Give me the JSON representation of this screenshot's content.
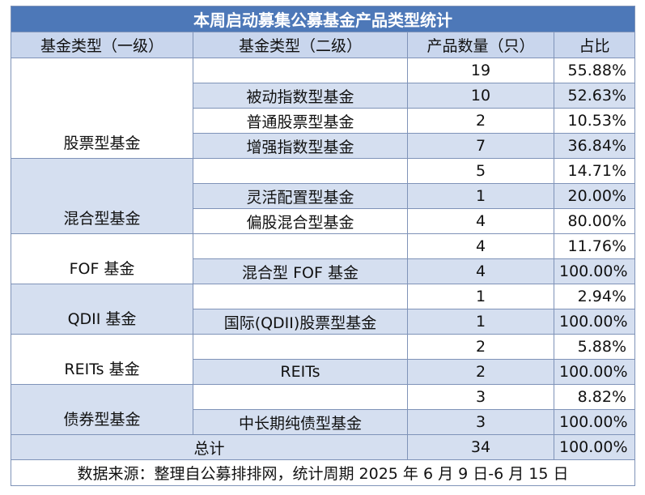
{
  "title": "本周启动募集公募基金产品类型统计",
  "headers": {
    "level1": "基金类型（一级）",
    "level2": "基金类型（二级）",
    "count": "产品数量（只）",
    "ratio": "占比"
  },
  "groups": [
    {
      "name": "股票型基金",
      "count": "19",
      "ratio": "55.88%",
      "subs": [
        {
          "name": "被动指数型基金",
          "count": "10",
          "ratio": "52.63%"
        },
        {
          "name": "普通股票型基金",
          "count": "2",
          "ratio": "10.53%"
        },
        {
          "name": "增强指数型基金",
          "count": "7",
          "ratio": "36.84%"
        }
      ]
    },
    {
      "name": "混合型基金",
      "count": "5",
      "ratio": "14.71%",
      "subs": [
        {
          "name": "灵活配置型基金",
          "count": "1",
          "ratio": "20.00%"
        },
        {
          "name": "偏股混合型基金",
          "count": "4",
          "ratio": "80.00%"
        }
      ]
    },
    {
      "name": "FOF 基金",
      "count": "4",
      "ratio": "11.76%",
      "subs": [
        {
          "name": "混合型 FOF 基金",
          "count": "4",
          "ratio": "100.00%"
        }
      ]
    },
    {
      "name": "QDII 基金",
      "count": "1",
      "ratio": "2.94%",
      "subs": [
        {
          "name": "国际(QDII)股票型基金",
          "count": "1",
          "ratio": "100.00%"
        }
      ]
    },
    {
      "name": "REITs 基金",
      "count": "2",
      "ratio": "5.88%",
      "subs": [
        {
          "name": "REITs",
          "count": "2",
          "ratio": "100.00%"
        }
      ]
    },
    {
      "name": "债券型基金",
      "count": "3",
      "ratio": "8.82%",
      "subs": [
        {
          "name": "中长期纯债型基金",
          "count": "3",
          "ratio": "100.00%"
        }
      ]
    }
  ],
  "total": {
    "label": "总计",
    "count": "34",
    "ratio": "100.00%"
  },
  "source": "数据来源：整理自公募排排网，统计周期 2025 年 6 月 9 日-6 月 15 日",
  "colors": {
    "title_bg": "#4d78b8",
    "header_bg": "#c9d6ed",
    "stripe_bg": "#d5dff0",
    "border": "#7f93b8"
  }
}
